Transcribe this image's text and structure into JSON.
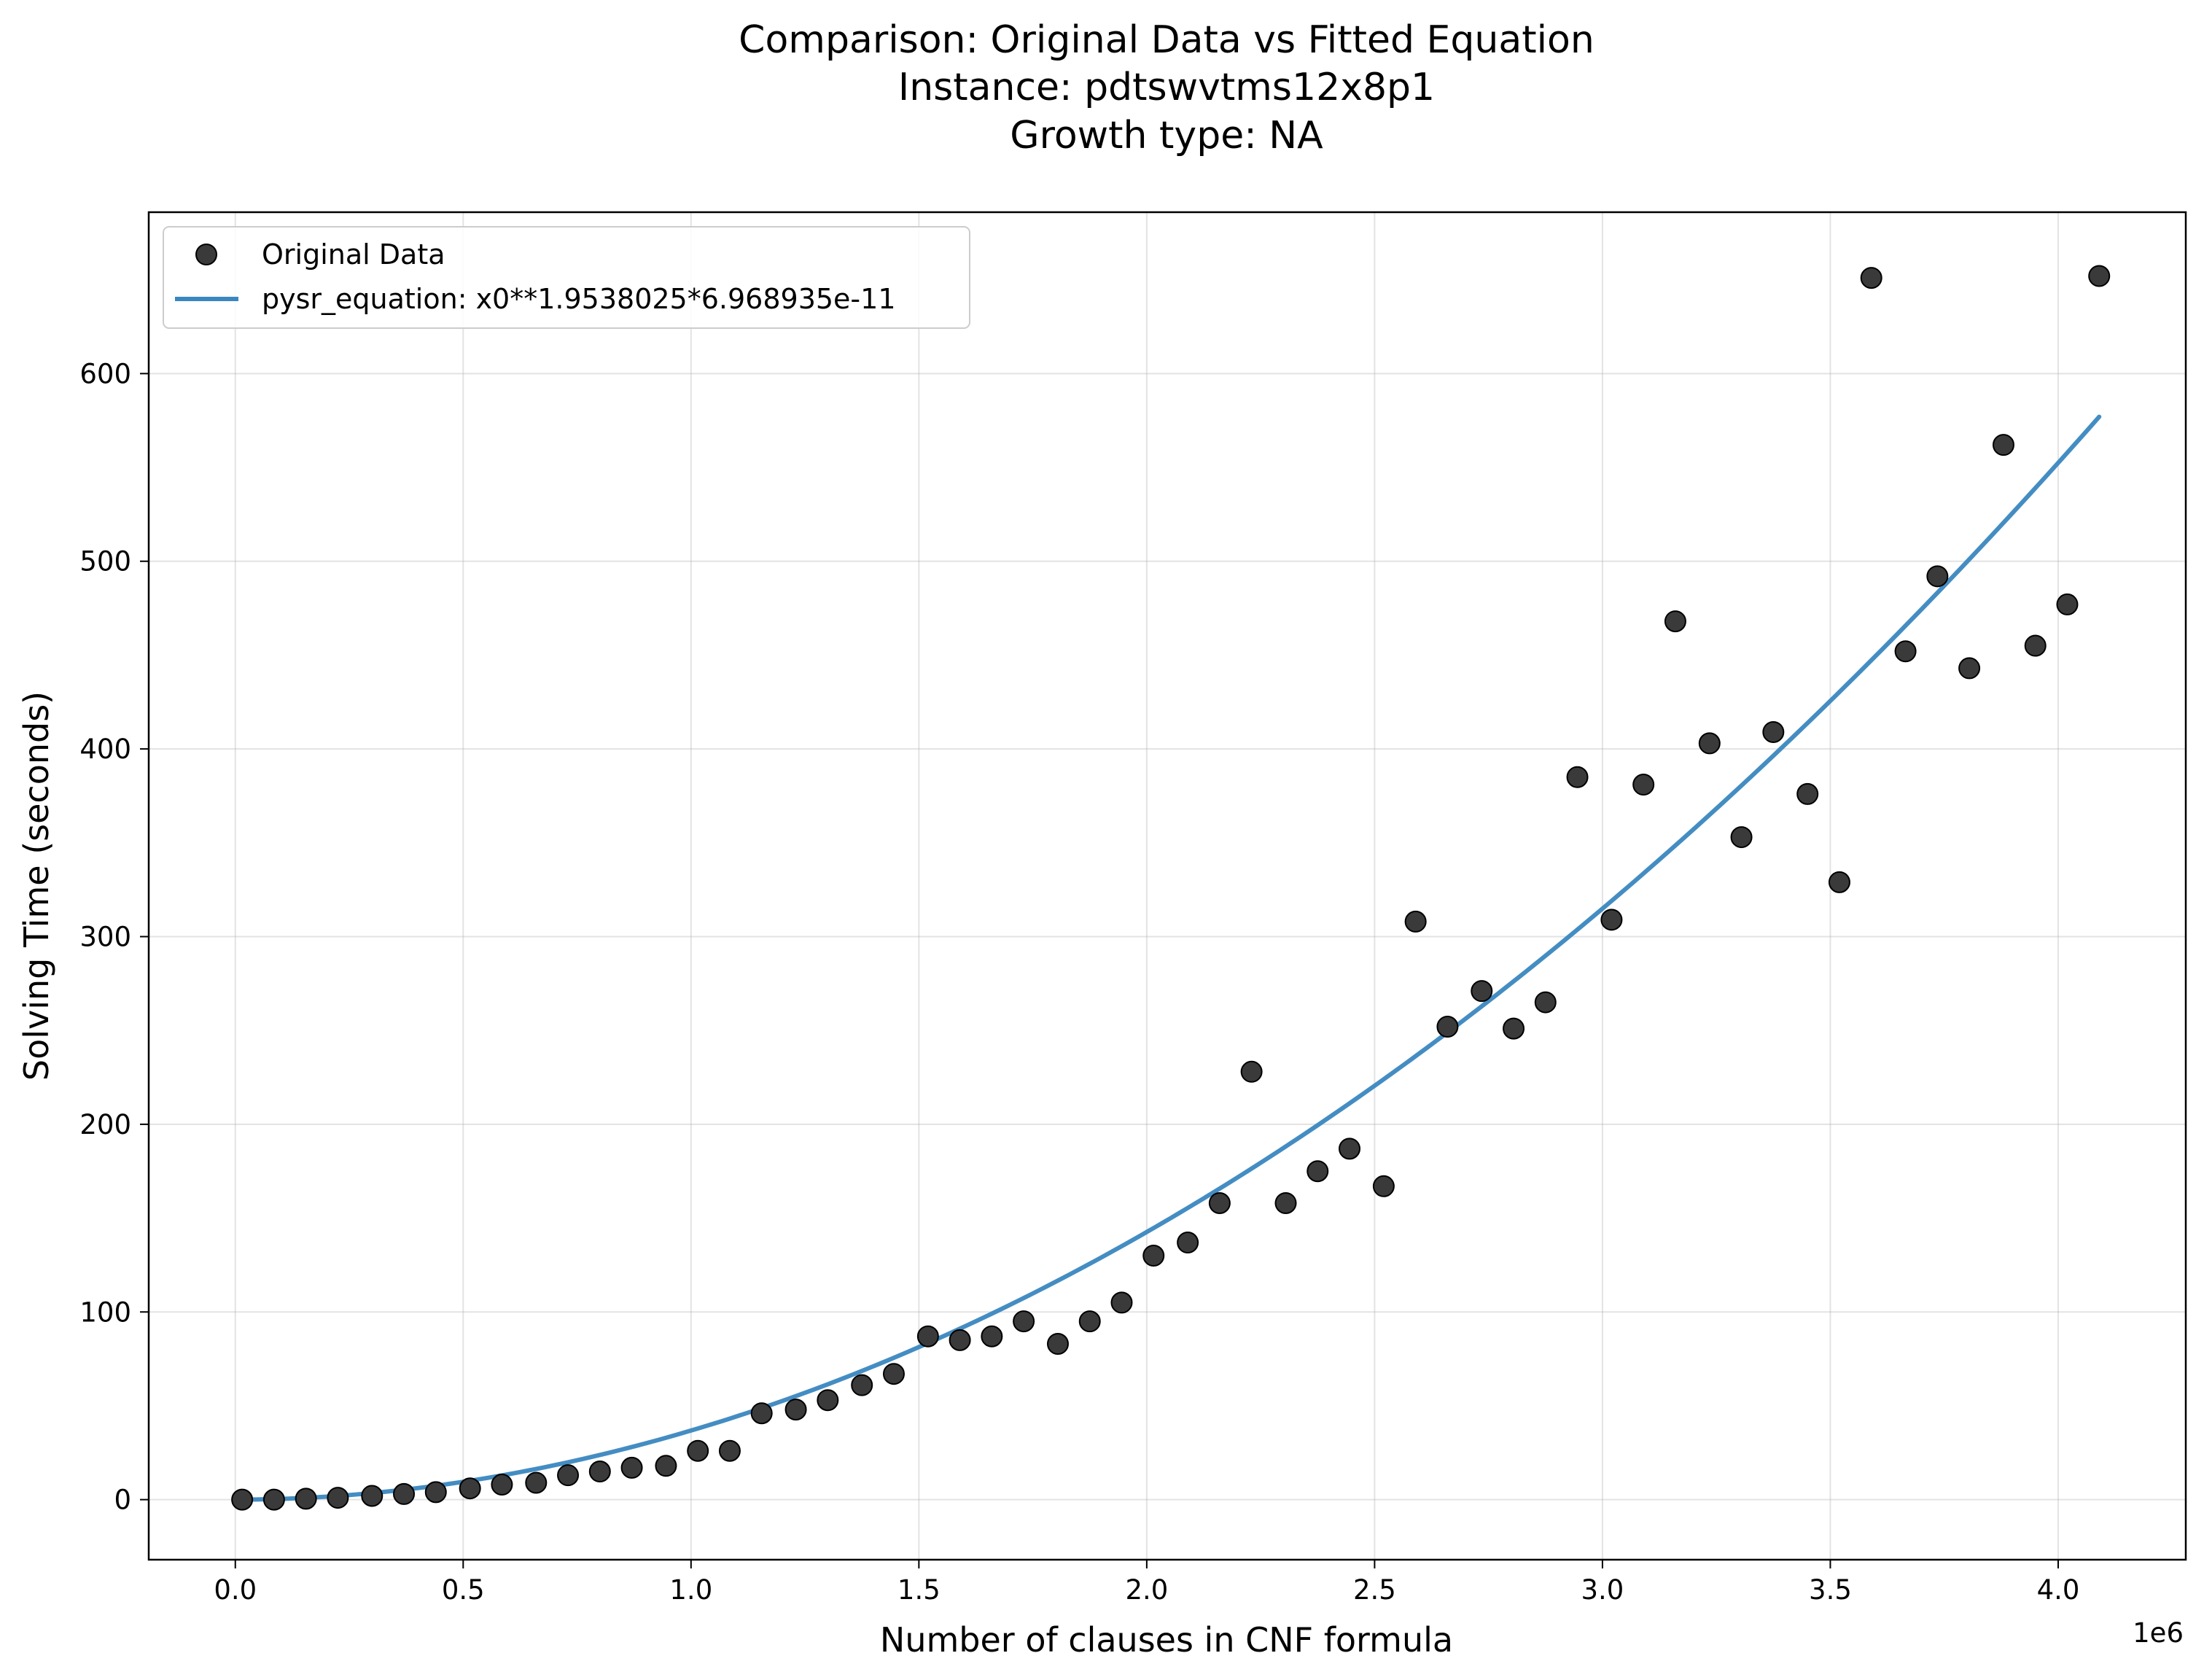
{
  "chart_data": {
    "type": "scatter",
    "title_lines": [
      "Comparison: Original Data vs Fitted Equation",
      "Instance: pdtswvtms12x8p1",
      "Growth type: NA"
    ],
    "xlabel": "Number of clauses in CNF formula",
    "ylabel": "Solving Time (seconds)",
    "x_offset_label": "1e6",
    "xlim": [
      -190000,
      4280000
    ],
    "ylim": [
      -32,
      686
    ],
    "x_ticks": [
      0,
      500000,
      1000000,
      1500000,
      2000000,
      2500000,
      3000000,
      3500000,
      4000000
    ],
    "x_tick_labels": [
      "0.0",
      "0.5",
      "1.0",
      "1.5",
      "2.0",
      "2.5",
      "3.0",
      "3.5",
      "4.0"
    ],
    "y_ticks": [
      0,
      100,
      200,
      300,
      400,
      500,
      600
    ],
    "y_tick_labels": [
      "0",
      "100",
      "200",
      "300",
      "400",
      "500",
      "600"
    ],
    "grid": true,
    "legend_position": "top-left",
    "series": [
      {
        "name": "Original Data",
        "kind": "scatter",
        "color": "#3a3a3a",
        "x": [
          15000,
          85000,
          155000,
          225000,
          300000,
          370000,
          440000,
          515000,
          585000,
          660000,
          730000,
          800000,
          870000,
          945000,
          1015000,
          1085000,
          1155000,
          1230000,
          1300000,
          1375000,
          1445000,
          1520000,
          1590000,
          1660000,
          1730000,
          1805000,
          1875000,
          1945000,
          2015000,
          2090000,
          2160000,
          2230000,
          2305000,
          2375000,
          2445000,
          2520000,
          2590000,
          2660000,
          2735000,
          2805000,
          2875000,
          2945000,
          3020000,
          3090000,
          3160000,
          3235000,
          3305000,
          3375000,
          3450000,
          3520000,
          3590000,
          3665000,
          3735000,
          3805000,
          3880000,
          3950000,
          4020000,
          4090000
        ],
        "y": [
          0,
          0,
          0.5,
          1,
          2,
          3,
          4,
          6,
          8,
          9,
          13,
          15,
          17,
          18,
          26,
          26,
          46,
          48,
          53,
          61,
          67,
          87,
          85,
          87,
          95,
          83,
          95,
          105,
          130,
          137,
          158,
          228,
          158,
          175,
          187,
          167,
          308,
          252,
          271,
          251,
          265,
          385,
          309,
          381,
          468,
          403,
          353,
          409,
          376,
          329,
          651,
          452,
          492,
          443,
          562,
          455,
          477,
          652
        ]
      },
      {
        "name": "pysr_equation: x0**1.9538025*6.968935e-11",
        "kind": "line",
        "color": "#3a87c0",
        "equation": {
          "exponent": 1.9538025,
          "coefficient": 6.968935e-11
        },
        "x_range": [
          15000,
          4090000
        ]
      }
    ]
  }
}
